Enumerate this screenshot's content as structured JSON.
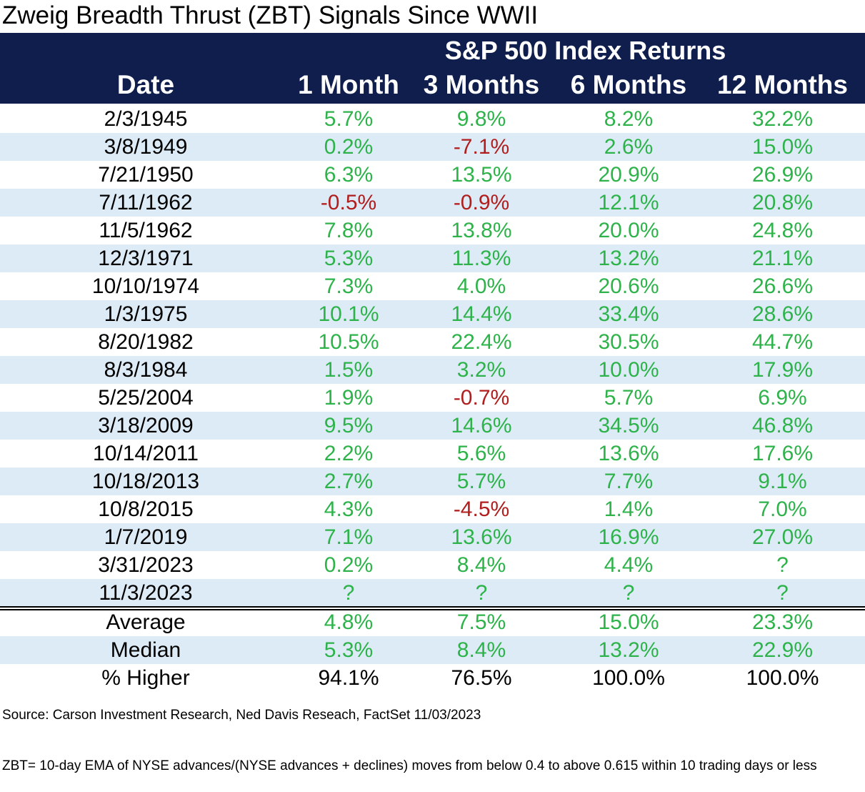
{
  "chart_data": {
    "type": "table",
    "title": "Zweig Breadth Thrust (ZBT) Signals Since WWII",
    "group_header": "S&P 500 Index Returns",
    "columns": [
      "Date",
      "1 Month",
      "3 Months",
      "6 Months",
      "12 Months"
    ],
    "rows": [
      {
        "date": "2/3/1945",
        "values": [
          "5.7%",
          "9.8%",
          "8.2%",
          "32.2%"
        ]
      },
      {
        "date": "3/8/1949",
        "values": [
          "0.2%",
          "-7.1%",
          "2.6%",
          "15.0%"
        ]
      },
      {
        "date": "7/21/1950",
        "values": [
          "6.3%",
          "13.5%",
          "20.9%",
          "26.9%"
        ]
      },
      {
        "date": "7/11/1962",
        "values": [
          "-0.5%",
          "-0.9%",
          "12.1%",
          "20.8%"
        ]
      },
      {
        "date": "11/5/1962",
        "values": [
          "7.8%",
          "13.8%",
          "20.0%",
          "24.8%"
        ]
      },
      {
        "date": "12/3/1971",
        "values": [
          "5.3%",
          "11.3%",
          "13.2%",
          "21.1%"
        ]
      },
      {
        "date": "10/10/1974",
        "values": [
          "7.3%",
          "4.0%",
          "20.6%",
          "26.6%"
        ]
      },
      {
        "date": "1/3/1975",
        "values": [
          "10.1%",
          "14.4%",
          "33.4%",
          "28.6%"
        ]
      },
      {
        "date": "8/20/1982",
        "values": [
          "10.5%",
          "22.4%",
          "30.5%",
          "44.7%"
        ]
      },
      {
        "date": "8/3/1984",
        "values": [
          "1.5%",
          "3.2%",
          "10.0%",
          "17.9%"
        ]
      },
      {
        "date": "5/25/2004",
        "values": [
          "1.9%",
          "-0.7%",
          "5.7%",
          "6.9%"
        ]
      },
      {
        "date": "3/18/2009",
        "values": [
          "9.5%",
          "14.6%",
          "34.5%",
          "46.8%"
        ]
      },
      {
        "date": "10/14/2011",
        "values": [
          "2.2%",
          "5.6%",
          "13.6%",
          "17.6%"
        ]
      },
      {
        "date": "10/18/2013",
        "values": [
          "2.7%",
          "5.7%",
          "7.7%",
          "9.1%"
        ]
      },
      {
        "date": "10/8/2015",
        "values": [
          "4.3%",
          "-4.5%",
          "1.4%",
          "7.0%"
        ]
      },
      {
        "date": "1/7/2019",
        "values": [
          "7.1%",
          "13.6%",
          "16.9%",
          "27.0%"
        ]
      },
      {
        "date": "3/31/2023",
        "values": [
          "0.2%",
          "8.4%",
          "4.4%",
          "?"
        ]
      },
      {
        "date": "11/3/2023",
        "values": [
          "?",
          "?",
          "?",
          "?"
        ]
      }
    ],
    "summary": [
      {
        "label": "Average",
        "values": [
          "4.8%",
          "7.5%",
          "15.0%",
          "23.3%"
        ],
        "style": "green"
      },
      {
        "label": "Median",
        "values": [
          "5.3%",
          "8.4%",
          "13.2%",
          "22.9%"
        ],
        "style": "green"
      },
      {
        "label": "% Higher",
        "values": [
          "94.1%",
          "76.5%",
          "100.0%",
          "100.0%"
        ],
        "style": "black"
      }
    ],
    "colors": {
      "header_bg": "#0f1e4d",
      "header_text": "#ffffff",
      "positive": "#2db34a",
      "negative": "#b01e1e",
      "band": "#ddebf7"
    }
  },
  "source": "Source: Carson Investment Research, Ned Davis Reseach, FactSet 11/03/2023",
  "note": "ZBT= 10-day EMA of NYSE advances/(NYSE advances + declines) moves from below 0.4 to above 0.615 within 10 trading days or less"
}
